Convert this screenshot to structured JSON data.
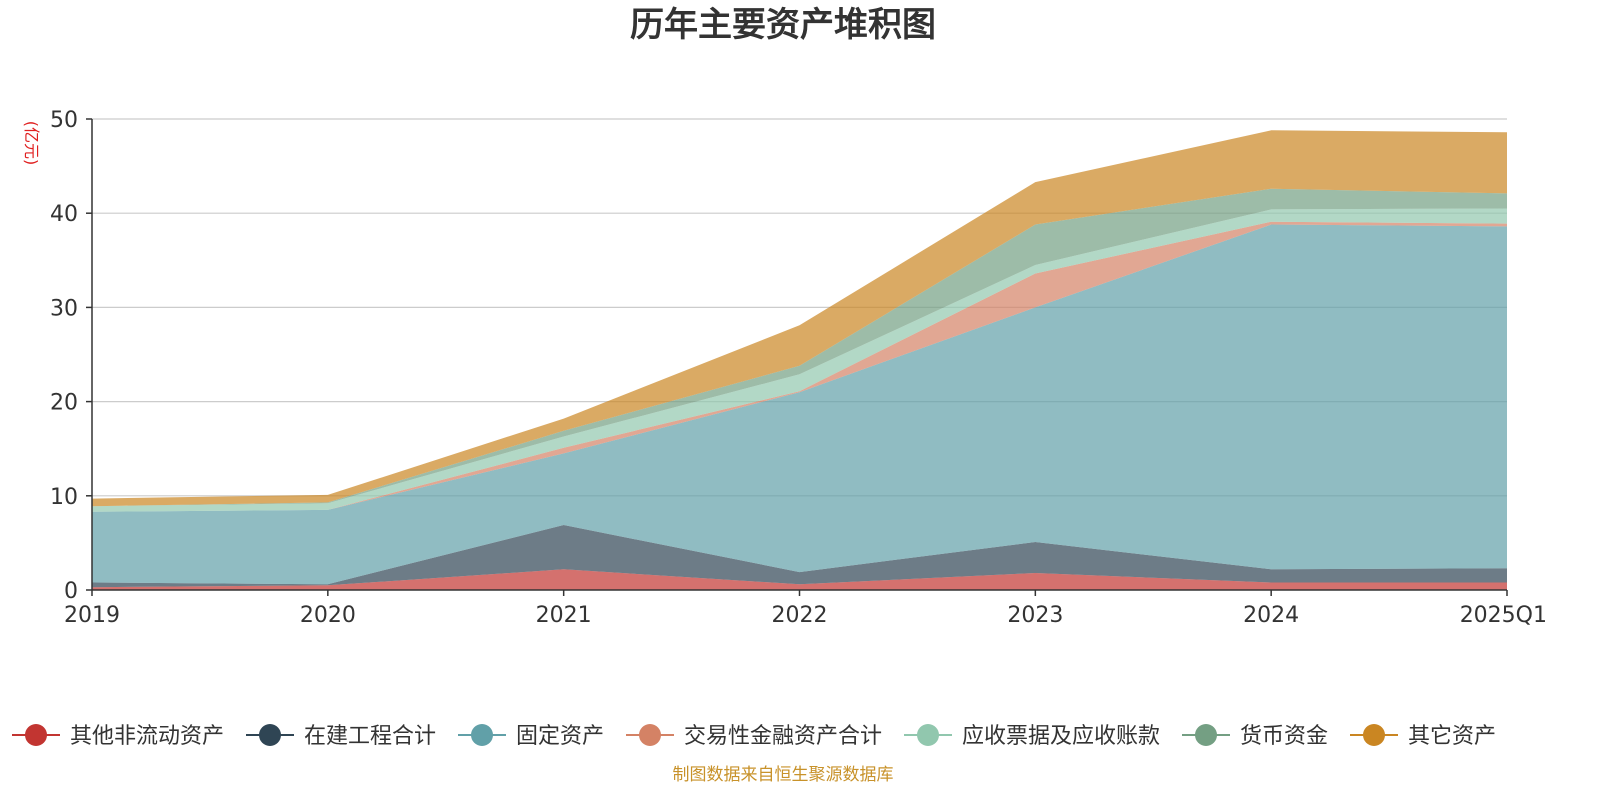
{
  "chart_data": {
    "type": "area",
    "title": "历年主要资产堆积图",
    "ylabel": "(亿元)",
    "xlabel": "",
    "ylim": [
      0,
      50
    ],
    "yticks": [
      0,
      10,
      20,
      30,
      40,
      50
    ],
    "categories": [
      "2019",
      "2020",
      "2021",
      "2022",
      "2023",
      "2024",
      "2025Q1"
    ],
    "stacked": true,
    "grid": true,
    "legend_position": "bottom",
    "series": [
      {
        "name": "其他非流动资产",
        "color": "#c23531",
        "values": [
          0.3,
          0.5,
          2.2,
          0.6,
          1.8,
          0.8,
          0.8
        ]
      },
      {
        "name": "在建工程合计",
        "color": "#2f4554",
        "values": [
          0.5,
          0.1,
          4.7,
          1.3,
          3.3,
          1.4,
          1.5
        ]
      },
      {
        "name": "固定资产",
        "color": "#61a0a8",
        "values": [
          7.5,
          7.9,
          7.6,
          19.1,
          24.9,
          36.6,
          36.3
        ]
      },
      {
        "name": "交易性金融资产合计",
        "color": "#d48265",
        "values": [
          0.0,
          0.0,
          0.6,
          0.1,
          3.6,
          0.3,
          0.3
        ]
      },
      {
        "name": "应收票据及应收账款",
        "color": "#91c7ae",
        "values": [
          0.6,
          0.7,
          1.2,
          1.8,
          0.9,
          1.3,
          1.6
        ]
      },
      {
        "name": "货币资金",
        "color": "#749f83",
        "values": [
          0.0,
          0.1,
          0.6,
          0.9,
          4.3,
          2.2,
          1.6
        ]
      },
      {
        "name": "其它资产",
        "color": "#ca8622",
        "values": [
          0.8,
          0.8,
          1.3,
          4.3,
          4.5,
          6.2,
          6.5
        ]
      }
    ],
    "source_text": "制图数据来自恒生聚源数据库"
  }
}
